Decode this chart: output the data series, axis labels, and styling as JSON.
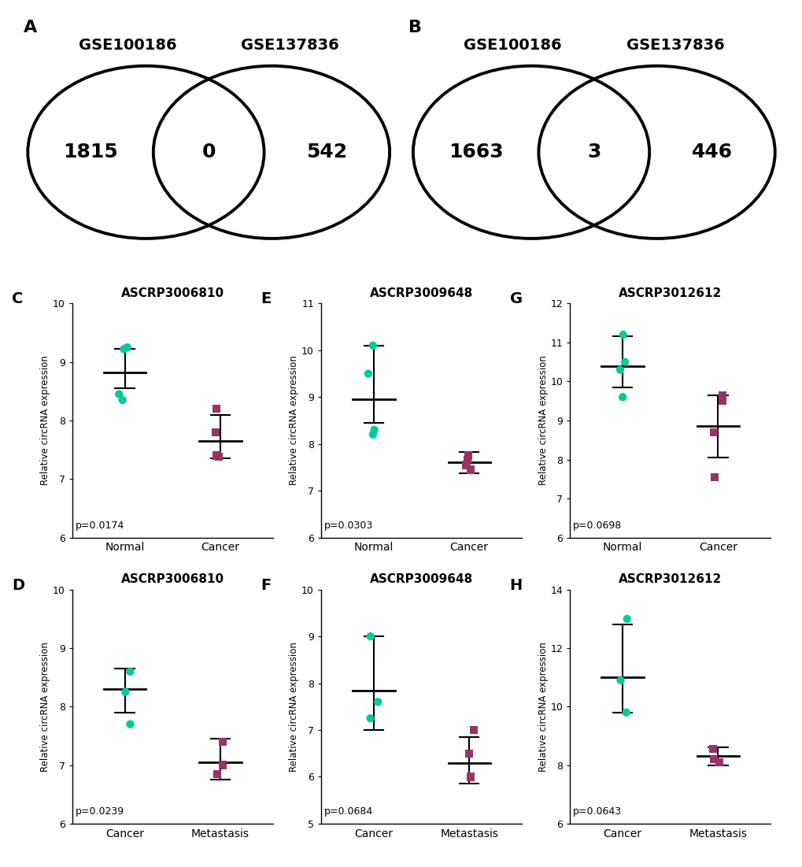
{
  "venn_A": {
    "label": "A",
    "left_label": "GSE100186",
    "right_label": "GSE137836",
    "left_val": "1815",
    "intersect_val": "0",
    "right_val": "542"
  },
  "venn_B": {
    "label": "B",
    "left_label": "GSE100186",
    "right_label": "GSE137836",
    "left_val": "1663",
    "intersect_val": "3",
    "right_val": "446"
  },
  "plot_C": {
    "label": "C",
    "title": "ASCRP3006810",
    "ylabel": "Relative circRNA expression",
    "xlabels": [
      "Normal",
      "Cancer"
    ],
    "ylim": [
      6,
      10
    ],
    "yticks": [
      6,
      7,
      8,
      9,
      10
    ],
    "pval": "p=0.0174",
    "group1_points": [
      9.22,
      9.25,
      8.45,
      8.35
    ],
    "group1_mean": 8.82,
    "group1_sem_low": 8.55,
    "group1_sem_high": 9.23,
    "group2_points": [
      8.2,
      7.8,
      7.4,
      7.38
    ],
    "group2_mean": 7.65,
    "group2_sem_low": 7.35,
    "group2_sem_high": 8.1,
    "color1": "#00CC99",
    "color2": "#993366"
  },
  "plot_D": {
    "label": "D",
    "title": "ASCRP3006810",
    "ylabel": "Relative circRNA expression",
    "xlabels": [
      "Cancer",
      "Metastasis"
    ],
    "ylim": [
      6,
      10
    ],
    "yticks": [
      6,
      7,
      8,
      9,
      10
    ],
    "pval": "p=0.0239",
    "group1_points": [
      8.6,
      8.25,
      7.7
    ],
    "group1_mean": 8.3,
    "group1_sem_low": 7.9,
    "group1_sem_high": 8.65,
    "group2_points": [
      7.4,
      7.0,
      6.85
    ],
    "group2_mean": 7.05,
    "group2_sem_low": 6.75,
    "group2_sem_high": 7.45,
    "color1": "#00CC99",
    "color2": "#993366"
  },
  "plot_E": {
    "label": "E",
    "title": "ASCRP3009648",
    "ylabel": "Relative circRNA expression",
    "xlabels": [
      "Normal",
      "Cancer"
    ],
    "ylim": [
      6,
      11
    ],
    "yticks": [
      6,
      7,
      8,
      9,
      10,
      11
    ],
    "pval": "p=0.0303",
    "group1_points": [
      10.1,
      9.5,
      8.3,
      8.2
    ],
    "group1_mean": 8.95,
    "group1_sem_low": 8.45,
    "group1_sem_high": 10.1,
    "group2_points": [
      7.75,
      7.65,
      7.55,
      7.45
    ],
    "group2_mean": 7.6,
    "group2_sem_low": 7.38,
    "group2_sem_high": 7.82,
    "color1": "#00CC99",
    "color2": "#993366"
  },
  "plot_F": {
    "label": "F",
    "title": "ASCRP3009648",
    "ylabel": "Relative circRNA expression",
    "xlabels": [
      "Cancer",
      "Metastasis"
    ],
    "ylim": [
      5,
      10
    ],
    "yticks": [
      5,
      6,
      7,
      8,
      9,
      10
    ],
    "pval": "p=0.0684",
    "group1_points": [
      9.0,
      7.6,
      7.25
    ],
    "group1_mean": 7.85,
    "group1_sem_low": 7.0,
    "group1_sem_high": 9.0,
    "group2_points": [
      7.0,
      6.5,
      6.0
    ],
    "group2_mean": 6.3,
    "group2_sem_low": 5.85,
    "group2_sem_high": 6.85,
    "color1": "#00CC99",
    "color2": "#993366"
  },
  "plot_G": {
    "label": "G",
    "title": "ASCRP3012612",
    "ylabel": "Relative circRNA expression",
    "xlabels": [
      "Normal",
      "Cancer"
    ],
    "ylim": [
      6,
      12
    ],
    "yticks": [
      6,
      7,
      8,
      9,
      10,
      11,
      12
    ],
    "pval": "p=0.0698",
    "group1_points": [
      11.2,
      10.5,
      10.3,
      9.6
    ],
    "group1_mean": 10.4,
    "group1_sem_low": 9.85,
    "group1_sem_high": 11.15,
    "group2_points": [
      9.65,
      9.5,
      8.7,
      7.55
    ],
    "group2_mean": 8.85,
    "group2_sem_low": 8.05,
    "group2_sem_high": 9.65,
    "color1": "#00CC99",
    "color2": "#993366"
  },
  "plot_H": {
    "label": "H",
    "title": "ASCRP3012612",
    "ylabel": "Relative circRNA expression",
    "xlabels": [
      "Cancer",
      "Metastasis"
    ],
    "ylim": [
      6,
      14
    ],
    "yticks": [
      6,
      8,
      10,
      12,
      14
    ],
    "pval": "p=0.0643",
    "group1_points": [
      13.0,
      10.9,
      9.8
    ],
    "group1_mean": 11.0,
    "group1_sem_low": 9.8,
    "group1_sem_high": 12.8,
    "group2_points": [
      8.55,
      8.2,
      8.1
    ],
    "group2_mean": 8.3,
    "group2_sem_low": 8.0,
    "group2_sem_high": 8.6,
    "color1": "#00CC99",
    "color2": "#993366"
  },
  "venn_circle_lw": 2.8,
  "venn_number_fontsize": 18,
  "venn_label_fontsize": 14,
  "panel_label_fontsize": 16
}
